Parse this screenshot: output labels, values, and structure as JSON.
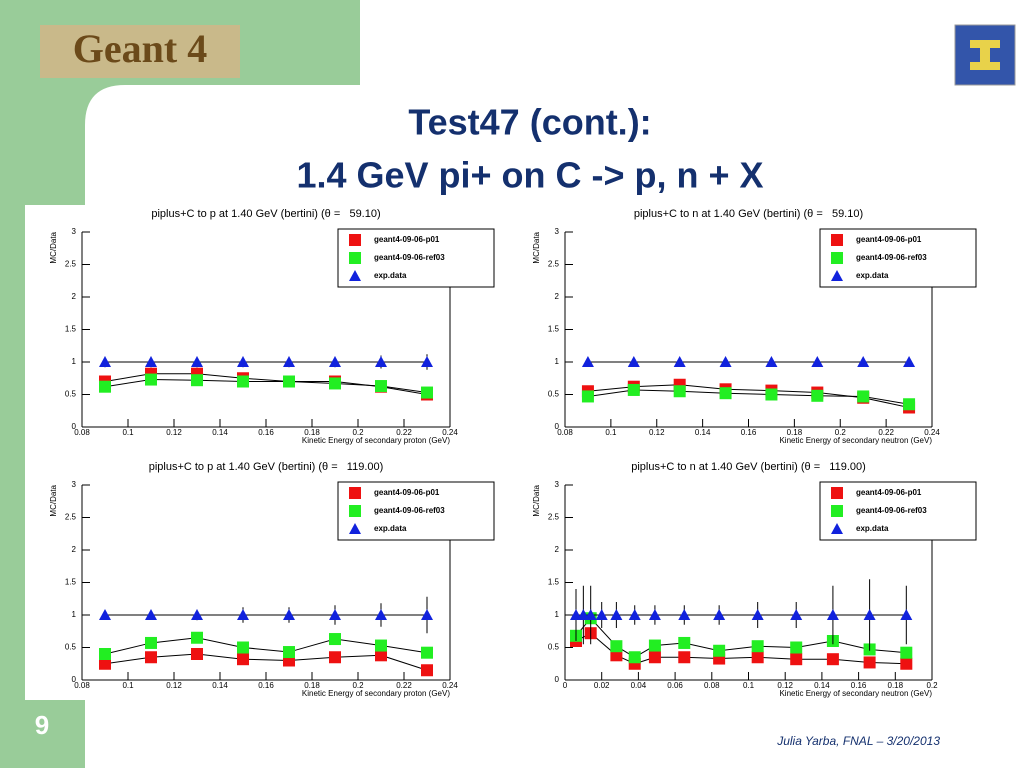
{
  "slide": {
    "logo": "Geant 4",
    "title": [
      "Test47 (cont.):",
      "1.4 GeV pi+ on C -> p, n + X"
    ],
    "page_number": "9",
    "footer": "Julia Yarba, FNAL – 3/20/2013"
  },
  "chart_data": [
    {
      "type": "line",
      "title": "piplus+C to p at 1.40 GeV (bertini) (θ =   59.10)",
      "ylabel": "MC/Data",
      "xlabel": "Kinetic Energy of secondary proton (GeV)",
      "xlim": [
        0.08,
        0.24
      ],
      "xticks": [
        0.08,
        0.1,
        0.12,
        0.14,
        0.16,
        0.18,
        0.2,
        0.22,
        0.24
      ],
      "ylim": [
        0,
        3
      ],
      "yticks": [
        0,
        0.5,
        1,
        1.5,
        2,
        2.5,
        3
      ],
      "legend": "upper right",
      "grid": false,
      "series": [
        {
          "name": "geant4-09-06-p01",
          "color": "#ee1111",
          "marker": "square",
          "x": [
            0.09,
            0.11,
            0.13,
            0.15,
            0.17,
            0.19,
            0.21,
            0.23
          ],
          "values": [
            0.7,
            0.82,
            0.82,
            0.75,
            0.7,
            0.7,
            0.62,
            0.5
          ]
        },
        {
          "name": "geant4-09-06-ref03",
          "color": "#22ee22",
          "marker": "square",
          "x": [
            0.09,
            0.11,
            0.13,
            0.15,
            0.17,
            0.19,
            0.21,
            0.23
          ],
          "values": [
            0.62,
            0.73,
            0.72,
            0.7,
            0.7,
            0.67,
            0.63,
            0.53
          ]
        },
        {
          "name": "exp.data",
          "color": "#1122dd",
          "marker": "triangle",
          "x": [
            0.09,
            0.11,
            0.13,
            0.15,
            0.17,
            0.19,
            0.21,
            0.23
          ],
          "values": [
            1,
            1,
            1,
            1,
            1,
            1,
            1,
            1
          ],
          "errors": [
            0.08,
            0.08,
            0.08,
            0.08,
            0.08,
            0.08,
            0.1,
            0.12
          ]
        }
      ]
    },
    {
      "type": "line",
      "title": "piplus+C to n at 1.40 GeV (bertini) (θ =   59.10)",
      "ylabel": "MC/Data",
      "xlabel": "Kinetic Energy of secondary neutron (GeV)",
      "xlim": [
        0.08,
        0.24
      ],
      "xticks": [
        0.08,
        0.1,
        0.12,
        0.14,
        0.16,
        0.18,
        0.2,
        0.22,
        0.24
      ],
      "ylim": [
        0,
        3
      ],
      "yticks": [
        0,
        0.5,
        1,
        1.5,
        2,
        2.5,
        3
      ],
      "legend": "upper right",
      "grid": false,
      "series": [
        {
          "name": "geant4-09-06-p01",
          "color": "#ee1111",
          "marker": "square",
          "x": [
            0.09,
            0.11,
            0.13,
            0.15,
            0.17,
            0.19,
            0.21,
            0.23
          ],
          "values": [
            0.55,
            0.62,
            0.65,
            0.58,
            0.56,
            0.53,
            0.45,
            0.3
          ]
        },
        {
          "name": "geant4-09-06-ref03",
          "color": "#22ee22",
          "marker": "square",
          "x": [
            0.09,
            0.11,
            0.13,
            0.15,
            0.17,
            0.19,
            0.21,
            0.23
          ],
          "values": [
            0.47,
            0.57,
            0.55,
            0.52,
            0.5,
            0.48,
            0.47,
            0.35
          ]
        },
        {
          "name": "exp.data",
          "color": "#1122dd",
          "marker": "triangle",
          "x": [
            0.09,
            0.11,
            0.13,
            0.15,
            0.17,
            0.19,
            0.21,
            0.23
          ],
          "values": [
            1,
            1,
            1,
            1,
            1,
            1,
            1,
            1
          ],
          "errors": [
            0.02,
            0.02,
            0.02,
            0.02,
            0.02,
            0.02,
            0.02,
            0.02
          ]
        }
      ]
    },
    {
      "type": "line",
      "title": "piplus+C to p at 1.40 GeV (bertini) (θ =   119.00)",
      "ylabel": "MC/Data",
      "xlabel": "Kinetic Energy of secondary proton (GeV)",
      "xlim": [
        0.08,
        0.24
      ],
      "xticks": [
        0.08,
        0.1,
        0.12,
        0.14,
        0.16,
        0.18,
        0.2,
        0.22,
        0.24
      ],
      "ylim": [
        0,
        3
      ],
      "yticks": [
        0,
        0.5,
        1,
        1.5,
        2,
        2.5,
        3
      ],
      "legend": "upper right",
      "grid": false,
      "series": [
        {
          "name": "geant4-09-06-p01",
          "color": "#ee1111",
          "marker": "square",
          "x": [
            0.09,
            0.11,
            0.13,
            0.15,
            0.17,
            0.19,
            0.21,
            0.23
          ],
          "values": [
            0.25,
            0.35,
            0.4,
            0.32,
            0.3,
            0.35,
            0.38,
            0.15
          ]
        },
        {
          "name": "geant4-09-06-ref03",
          "color": "#22ee22",
          "marker": "square",
          "x": [
            0.09,
            0.11,
            0.13,
            0.15,
            0.17,
            0.19,
            0.21,
            0.23
          ],
          "values": [
            0.4,
            0.57,
            0.65,
            0.5,
            0.43,
            0.63,
            0.53,
            0.42
          ]
        },
        {
          "name": "exp.data",
          "color": "#1122dd",
          "marker": "triangle",
          "x": [
            0.09,
            0.11,
            0.13,
            0.15,
            0.17,
            0.19,
            0.21,
            0.23
          ],
          "values": [
            1,
            1,
            1,
            1,
            1,
            1,
            1,
            1
          ],
          "errors": [
            0.05,
            0.05,
            0.08,
            0.12,
            0.12,
            0.15,
            0.18,
            0.28
          ]
        }
      ]
    },
    {
      "type": "line",
      "title": "piplus+C to n at 1.40 GeV (bertini) (θ =   119.00)",
      "ylabel": "MC/Data",
      "xlabel": "Kinetic Energy of secondary neutron (GeV)",
      "xlim": [
        0,
        0.2
      ],
      "xticks": [
        0,
        0.02,
        0.04,
        0.06,
        0.08,
        0.1,
        0.12,
        0.14,
        0.16,
        0.18,
        0.2
      ],
      "ylim": [
        0,
        3
      ],
      "yticks": [
        0,
        0.5,
        1,
        1.5,
        2,
        2.5,
        3
      ],
      "legend": "upper right",
      "grid": false,
      "series": [
        {
          "name": "geant4-09-06-p01",
          "color": "#ee1111",
          "marker": "square",
          "x": [
            0.006,
            0.014,
            0.028,
            0.038,
            0.049,
            0.065,
            0.084,
            0.105,
            0.126,
            0.146,
            0.166,
            0.186
          ],
          "values": [
            0.6,
            0.72,
            0.38,
            0.25,
            0.35,
            0.35,
            0.33,
            0.35,
            0.32,
            0.32,
            0.27,
            0.25
          ]
        },
        {
          "name": "geant4-09-06-ref03",
          "color": "#22ee22",
          "marker": "square",
          "x": [
            0.006,
            0.014,
            0.028,
            0.038,
            0.049,
            0.065,
            0.084,
            0.105,
            0.126,
            0.146,
            0.166,
            0.186
          ],
          "values": [
            0.68,
            0.95,
            0.52,
            0.35,
            0.53,
            0.57,
            0.45,
            0.52,
            0.5,
            0.6,
            0.47,
            0.42
          ]
        },
        {
          "name": "exp.data",
          "color": "#1122dd",
          "marker": "triangle",
          "x": [
            0.006,
            0.01,
            0.014,
            0.02,
            0.028,
            0.038,
            0.049,
            0.065,
            0.084,
            0.105,
            0.126,
            0.146,
            0.166,
            0.186
          ],
          "values": [
            1,
            1,
            1,
            1,
            1,
            1,
            1,
            1,
            1,
            1,
            1,
            1,
            1,
            1
          ],
          "errors": [
            0.4,
            0.45,
            0.45,
            0.2,
            0.2,
            0.15,
            0.15,
            0.15,
            0.15,
            0.2,
            0.2,
            0.45,
            0.55,
            0.45
          ]
        }
      ]
    }
  ]
}
